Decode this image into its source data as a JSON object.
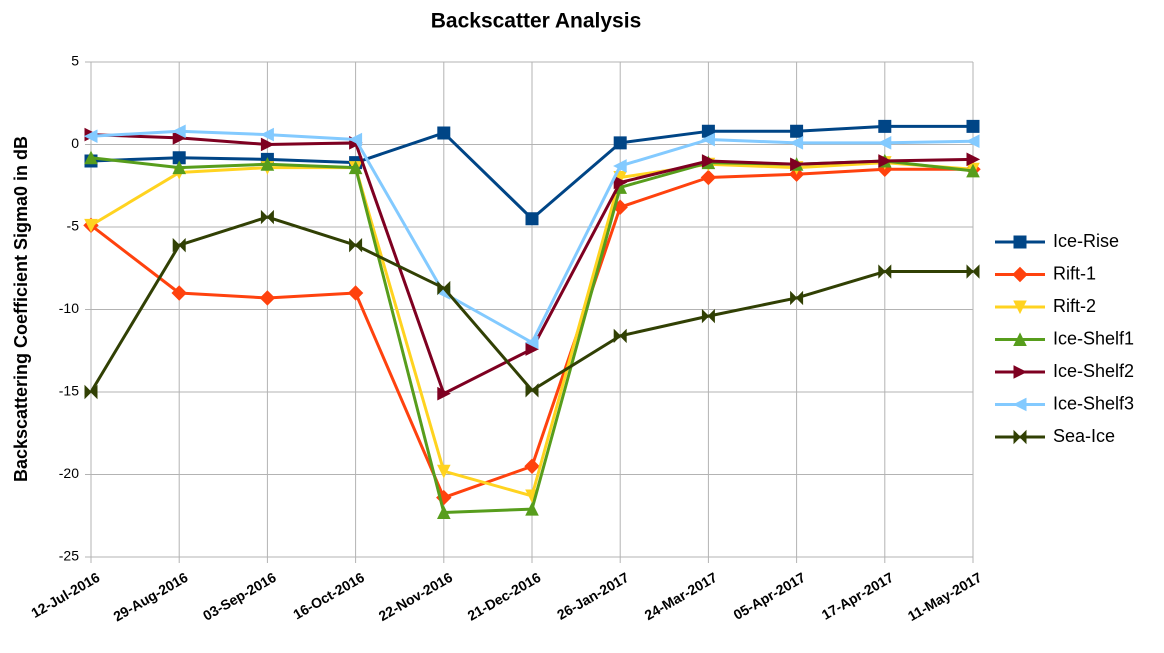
{
  "chart_data": {
    "type": "line",
    "title": "Backscatter Analysis",
    "y_label": "Backscattering Coefficient Sigma0 in dB",
    "categories": [
      "12-Jul-2016",
      "29-Aug-2016",
      "03-Sep-2016",
      "16-Oct-2016",
      "22-Nov-2016",
      "21-Dec-2016",
      "26-Jan-2017",
      "24-Mar-2017",
      "05-Apr-2017",
      "17-Apr-2017",
      "11-May-2017"
    ],
    "ylim": [
      -25,
      5
    ],
    "yticks": [
      -25,
      -20,
      -15,
      -10,
      -5,
      0,
      5
    ],
    "grid": true,
    "legend": "right",
    "series": [
      {
        "name": "Ice-Rise",
        "color": "#004586",
        "marker": "square",
        "values": [
          -1.0,
          -0.8,
          -0.9,
          -1.1,
          0.7,
          -4.5,
          0.1,
          0.8,
          0.8,
          1.1,
          1.1
        ]
      },
      {
        "name": "Rift-1",
        "color": "#ff420e",
        "marker": "diamond",
        "values": [
          -4.9,
          -9.0,
          -9.3,
          -9.0,
          -21.4,
          -19.5,
          -3.8,
          -2.0,
          -1.8,
          -1.5,
          -1.5
        ]
      },
      {
        "name": "Rift-2",
        "color": "#ffd320",
        "marker": "triangle-down",
        "values": [
          -4.9,
          -1.7,
          -1.4,
          -1.4,
          -19.8,
          -21.3,
          -2.0,
          -1.2,
          -1.4,
          -1.1,
          -1.5
        ]
      },
      {
        "name": "Ice-Shelf1",
        "color": "#579d1c",
        "marker": "triangle-up",
        "values": [
          -0.8,
          -1.4,
          -1.2,
          -1.4,
          -22.3,
          -22.1,
          -2.6,
          -1.1,
          -1.2,
          -1.0,
          -1.6
        ]
      },
      {
        "name": "Ice-Shelf2",
        "color": "#7e0021",
        "marker": "triangle-right",
        "values": [
          0.6,
          0.4,
          0.0,
          0.1,
          -15.1,
          -12.4,
          -2.3,
          -1.0,
          -1.2,
          -1.0,
          -0.9
        ]
      },
      {
        "name": "Ice-Shelf3",
        "color": "#83caff",
        "marker": "triangle-left",
        "values": [
          0.5,
          0.8,
          0.6,
          0.3,
          -9.0,
          -12.0,
          -1.3,
          0.3,
          0.1,
          0.1,
          0.2
        ]
      },
      {
        "name": "Sea-Ice",
        "color": "#314004",
        "marker": "bowtie",
        "values": [
          -15.0,
          -6.1,
          -4.4,
          -6.1,
          -8.7,
          -14.9,
          -11.6,
          -10.4,
          -9.3,
          -7.7,
          -7.7
        ]
      }
    ]
  }
}
